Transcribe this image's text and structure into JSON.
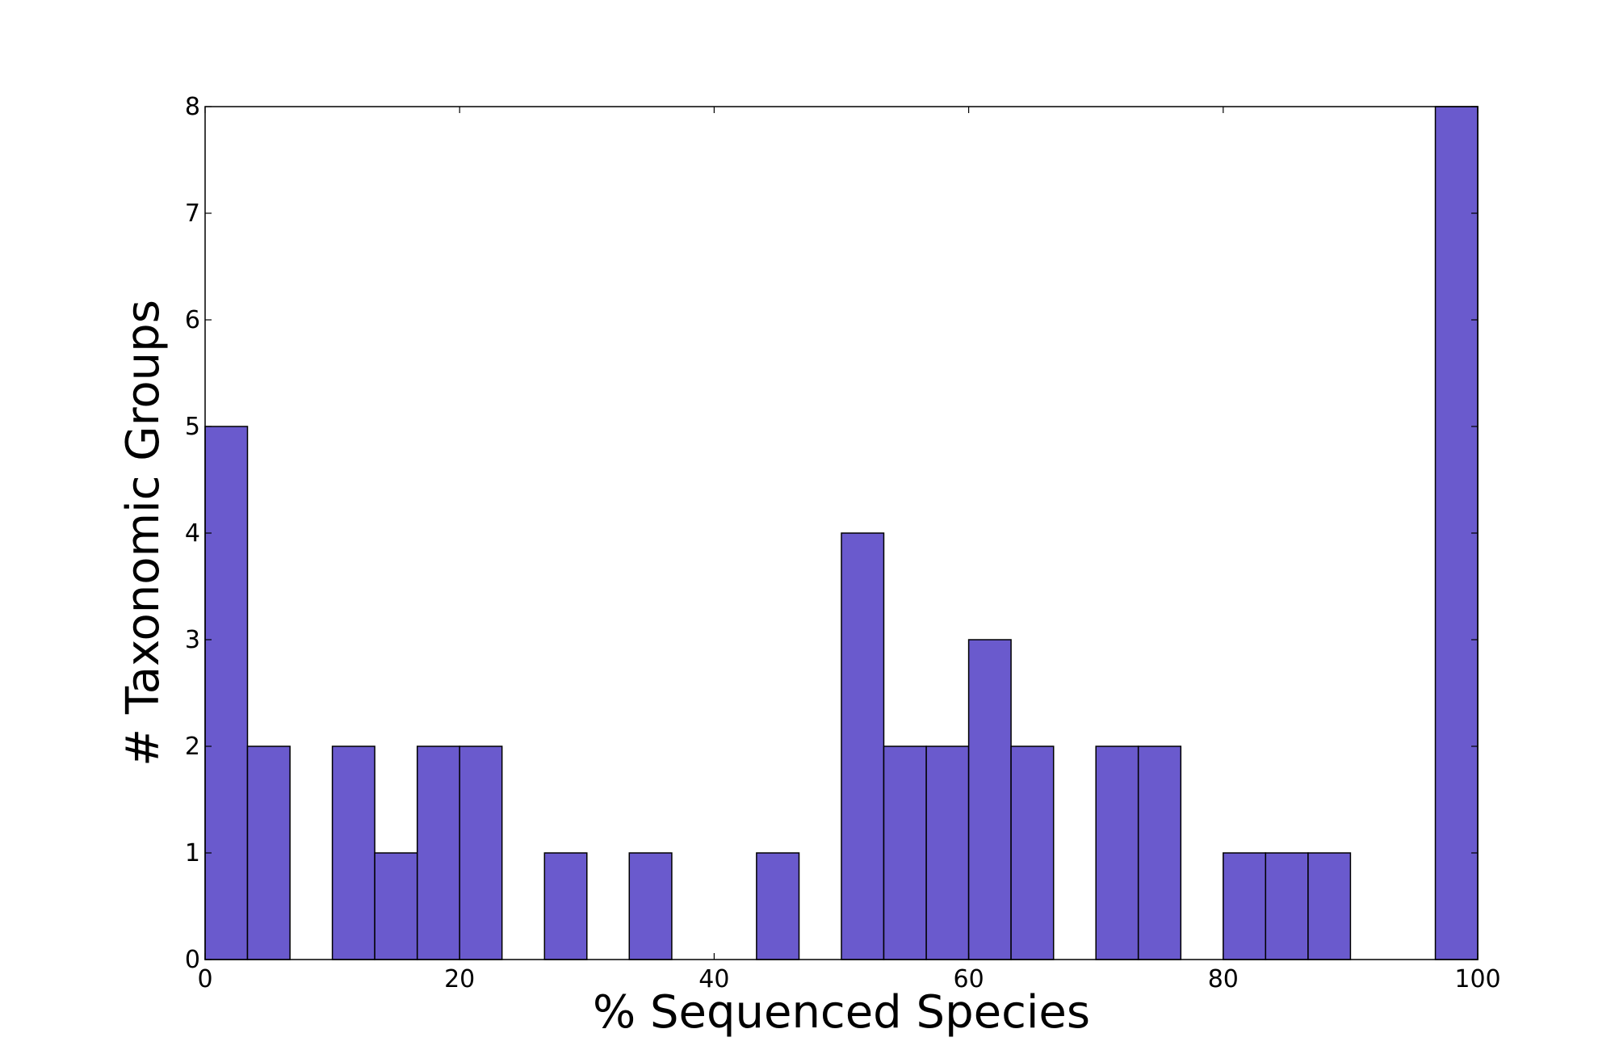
{
  "chart_data": {
    "type": "bar",
    "title": "",
    "xlabel": "% Sequenced Species",
    "ylabel": "# Taxonomic Groups",
    "xlim": [
      0,
      100
    ],
    "ylim": [
      0,
      8
    ],
    "xticks": [
      "0",
      "20",
      "40",
      "60",
      "80",
      "100"
    ],
    "yticks": [
      "0",
      "1",
      "2",
      "3",
      "4",
      "5",
      "6",
      "7",
      "8"
    ],
    "grid": false,
    "legend": "none",
    "bar_color": "#6a5acd",
    "bins": [
      {
        "x0": 0.0,
        "x1": 3.33,
        "value": 5
      },
      {
        "x0": 3.33,
        "x1": 6.67,
        "value": 2
      },
      {
        "x0": 6.67,
        "x1": 10.0,
        "value": 0
      },
      {
        "x0": 10.0,
        "x1": 13.33,
        "value": 2
      },
      {
        "x0": 13.33,
        "x1": 16.67,
        "value": 1
      },
      {
        "x0": 16.67,
        "x1": 20.0,
        "value": 2
      },
      {
        "x0": 20.0,
        "x1": 23.33,
        "value": 2
      },
      {
        "x0": 23.33,
        "x1": 26.67,
        "value": 0
      },
      {
        "x0": 26.67,
        "x1": 30.0,
        "value": 1
      },
      {
        "x0": 30.0,
        "x1": 33.33,
        "value": 0
      },
      {
        "x0": 33.33,
        "x1": 36.67,
        "value": 1
      },
      {
        "x0": 36.67,
        "x1": 40.0,
        "value": 0
      },
      {
        "x0": 40.0,
        "x1": 43.33,
        "value": 0
      },
      {
        "x0": 43.33,
        "x1": 46.67,
        "value": 1
      },
      {
        "x0": 46.67,
        "x1": 50.0,
        "value": 0
      },
      {
        "x0": 50.0,
        "x1": 53.33,
        "value": 4
      },
      {
        "x0": 53.33,
        "x1": 56.67,
        "value": 2
      },
      {
        "x0": 56.67,
        "x1": 60.0,
        "value": 2
      },
      {
        "x0": 60.0,
        "x1": 63.33,
        "value": 3
      },
      {
        "x0": 63.33,
        "x1": 66.67,
        "value": 2
      },
      {
        "x0": 66.67,
        "x1": 70.0,
        "value": 0
      },
      {
        "x0": 70.0,
        "x1": 73.33,
        "value": 2
      },
      {
        "x0": 73.33,
        "x1": 76.67,
        "value": 2
      },
      {
        "x0": 76.67,
        "x1": 80.0,
        "value": 0
      },
      {
        "x0": 80.0,
        "x1": 83.33,
        "value": 1
      },
      {
        "x0": 83.33,
        "x1": 86.67,
        "value": 1
      },
      {
        "x0": 86.67,
        "x1": 90.0,
        "value": 1
      },
      {
        "x0": 90.0,
        "x1": 93.33,
        "value": 0
      },
      {
        "x0": 93.33,
        "x1": 96.67,
        "value": 0
      },
      {
        "x0": 96.67,
        "x1": 100.0,
        "value": 8
      }
    ]
  }
}
